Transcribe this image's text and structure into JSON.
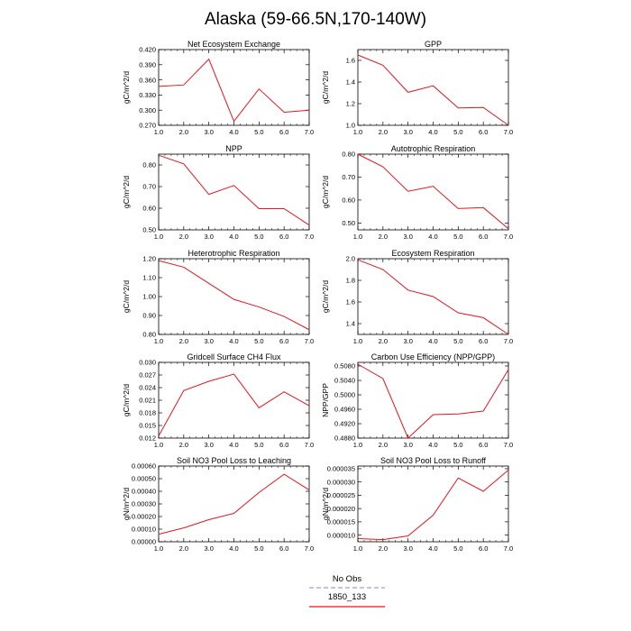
{
  "title": "Alaska (59-66.5N,170-140W)",
  "legend": {
    "position": "bottom-center",
    "entries": [
      {
        "label": "No Obs",
        "color": "#9999ff",
        "style": "dashed"
      },
      {
        "label": "1850_133",
        "color": "#e8141e",
        "style": "solid"
      }
    ]
  },
  "chart_data": [
    {
      "type": "line",
      "title": "Net Ecosystem Exchange",
      "ylabel": "gC/m^2/d",
      "x": [
        1,
        2,
        3,
        4,
        5,
        6,
        7
      ],
      "xlim": [
        1,
        7
      ],
      "xticks": [
        "1.0",
        "2.0",
        "3.0",
        "4.0",
        "5.0",
        "6.0",
        "7.0"
      ],
      "ylim": [
        0.27,
        0.42
      ],
      "yticks": [
        "0.270",
        "0.300",
        "0.330",
        "0.360",
        "0.390",
        "0.420"
      ],
      "series": [
        {
          "color": "#e8141e",
          "values": [
            0.347,
            0.35,
            0.401,
            0.278,
            0.342,
            0.296,
            0.3
          ]
        }
      ]
    },
    {
      "type": "line",
      "title": "GPP",
      "ylabel": "gC/m^2/d",
      "x": [
        1,
        2,
        3,
        4,
        5,
        6,
        7
      ],
      "xlim": [
        1,
        7
      ],
      "xticks": [
        "1.0",
        "2.0",
        "3.0",
        "4.0",
        "5.0",
        "6.0",
        "7.0"
      ],
      "ylim": [
        1.0,
        1.7
      ],
      "yticks": [
        "1.0",
        "1.2",
        "1.4",
        "1.6"
      ],
      "series": [
        {
          "color": "#e8141e",
          "values": [
            1.65,
            1.555,
            1.305,
            1.365,
            1.16,
            1.165,
            1.0
          ]
        }
      ]
    },
    {
      "type": "line",
      "title": "NPP",
      "ylabel": "gC/m^2/d",
      "x": [
        1,
        2,
        3,
        4,
        5,
        6,
        7
      ],
      "xlim": [
        1,
        7
      ],
      "xticks": [
        "1.0",
        "2.0",
        "3.0",
        "4.0",
        "5.0",
        "6.0",
        "7.0"
      ],
      "ylim": [
        0.5,
        0.85
      ],
      "yticks": [
        "0.50",
        "0.60",
        "0.70",
        "0.80"
      ],
      "series": [
        {
          "color": "#e8141e",
          "values": [
            0.845,
            0.805,
            0.664,
            0.705,
            0.598,
            0.598,
            0.522
          ]
        }
      ]
    },
    {
      "type": "line",
      "title": "Autotrophic Respiration",
      "ylabel": "gC/m^2/d",
      "x": [
        1,
        2,
        3,
        4,
        5,
        6,
        7
      ],
      "xlim": [
        1,
        7
      ],
      "xticks": [
        "1.0",
        "2.0",
        "3.0",
        "4.0",
        "5.0",
        "6.0",
        "7.0"
      ],
      "ylim": [
        0.47,
        0.8
      ],
      "yticks": [
        "0.50",
        "0.60",
        "0.70",
        "0.80"
      ],
      "series": [
        {
          "color": "#e8141e",
          "values": [
            0.8,
            0.745,
            0.638,
            0.66,
            0.563,
            0.567,
            0.475
          ]
        }
      ]
    },
    {
      "type": "line",
      "title": "Heterotrophic Respiration",
      "ylabel": "gC/m^2/d",
      "x": [
        1,
        2,
        3,
        4,
        5,
        6,
        7
      ],
      "xlim": [
        1,
        7
      ],
      "xticks": [
        "1.0",
        "2.0",
        "3.0",
        "4.0",
        "5.0",
        "6.0",
        "7.0"
      ],
      "ylim": [
        0.8,
        1.2
      ],
      "yticks": [
        "0.80",
        "0.90",
        "1.00",
        "1.10",
        "1.20"
      ],
      "series": [
        {
          "color": "#e8141e",
          "values": [
            1.19,
            1.155,
            1.07,
            0.985,
            0.945,
            0.895,
            0.825
          ]
        }
      ]
    },
    {
      "type": "line",
      "title": "Ecosystem Respiration",
      "ylabel": "gC/m^2/d",
      "x": [
        1,
        2,
        3,
        4,
        5,
        6,
        7
      ],
      "xlim": [
        1,
        7
      ],
      "xticks": [
        "1.0",
        "2.0",
        "3.0",
        "4.0",
        "5.0",
        "6.0",
        "7.0"
      ],
      "ylim": [
        1.3,
        2.0
      ],
      "yticks": [
        "1.4",
        "1.6",
        "1.8",
        "2.0"
      ],
      "series": [
        {
          "color": "#e8141e",
          "values": [
            1.99,
            1.9,
            1.71,
            1.65,
            1.5,
            1.455,
            1.3
          ]
        }
      ]
    },
    {
      "type": "line",
      "title": "Gridcell Surface CH4 Flux",
      "ylabel": "gC/m^2/d",
      "x": [
        1,
        2,
        3,
        4,
        5,
        6,
        7
      ],
      "xlim": [
        1,
        7
      ],
      "xticks": [
        "1.0",
        "2.0",
        "3.0",
        "4.0",
        "5.0",
        "6.0",
        "7.0"
      ],
      "ylim": [
        0.012,
        0.03
      ],
      "yticks": [
        "0.012",
        "0.015",
        "0.018",
        "0.021",
        "0.024",
        "0.027",
        "0.030"
      ],
      "series": [
        {
          "color": "#e8141e",
          "values": [
            0.0125,
            0.0233,
            0.0255,
            0.0272,
            0.0192,
            0.023,
            0.0197
          ]
        }
      ]
    },
    {
      "type": "line",
      "title": "Carbon Use Efficiency (NPP/GPP)",
      "ylabel": "NPP/GPP",
      "x": [
        1,
        2,
        3,
        4,
        5,
        6,
        7
      ],
      "xlim": [
        1,
        7
      ],
      "xticks": [
        "1.0",
        "2.0",
        "3.0",
        "4.0",
        "5.0",
        "6.0",
        "7.0"
      ],
      "ylim": [
        0.488,
        0.509
      ],
      "yticks": [
        "0.4880",
        "0.4920",
        "0.4960",
        "0.5000",
        "0.5040",
        "0.5080"
      ],
      "series": [
        {
          "color": "#e8141e",
          "values": [
            0.5085,
            0.5045,
            0.488,
            0.4945,
            0.4947,
            0.4955,
            0.507
          ]
        }
      ]
    },
    {
      "type": "line",
      "title": "Soil NO3 Pool Loss to Leaching",
      "ylabel": "gN/m^2/d",
      "x": [
        1,
        2,
        3,
        4,
        5,
        6,
        7
      ],
      "xlim": [
        1,
        7
      ],
      "xticks": [
        "1.0",
        "2.0",
        "3.0",
        "4.0",
        "5.0",
        "6.0",
        "7.0"
      ],
      "ylim": [
        0.0,
        0.0006
      ],
      "yticks": [
        "0.00000",
        "0.00010",
        "0.00020",
        "0.00030",
        "0.00040",
        "0.00050",
        "0.00060"
      ],
      "series": [
        {
          "color": "#e8141e",
          "values": [
            6e-05,
            0.00011,
            0.000175,
            0.000225,
            0.00039,
            0.000535,
            0.00041
          ]
        }
      ]
    },
    {
      "type": "line",
      "title": "Soil NO3 Pool Loss to Runoff",
      "ylabel": "gN/m^2/d",
      "x": [
        1,
        2,
        3,
        4,
        5,
        6,
        7
      ],
      "xlim": [
        1,
        7
      ],
      "xticks": [
        "1.0",
        "2.0",
        "3.0",
        "4.0",
        "5.0",
        "6.0",
        "7.0"
      ],
      "ylim": [
        7.5e-06,
        3.6e-05
      ],
      "yticks": [
        "0.000010",
        "0.000015",
        "0.000020",
        "0.000025",
        "0.000030",
        "0.000035"
      ],
      "series": [
        {
          "color": "#e8141e",
          "values": [
            8.7e-06,
            8.3e-06,
            9.7e-06,
            1.75e-05,
            3.15e-05,
            2.65e-05,
            3.45e-05
          ]
        }
      ]
    }
  ]
}
